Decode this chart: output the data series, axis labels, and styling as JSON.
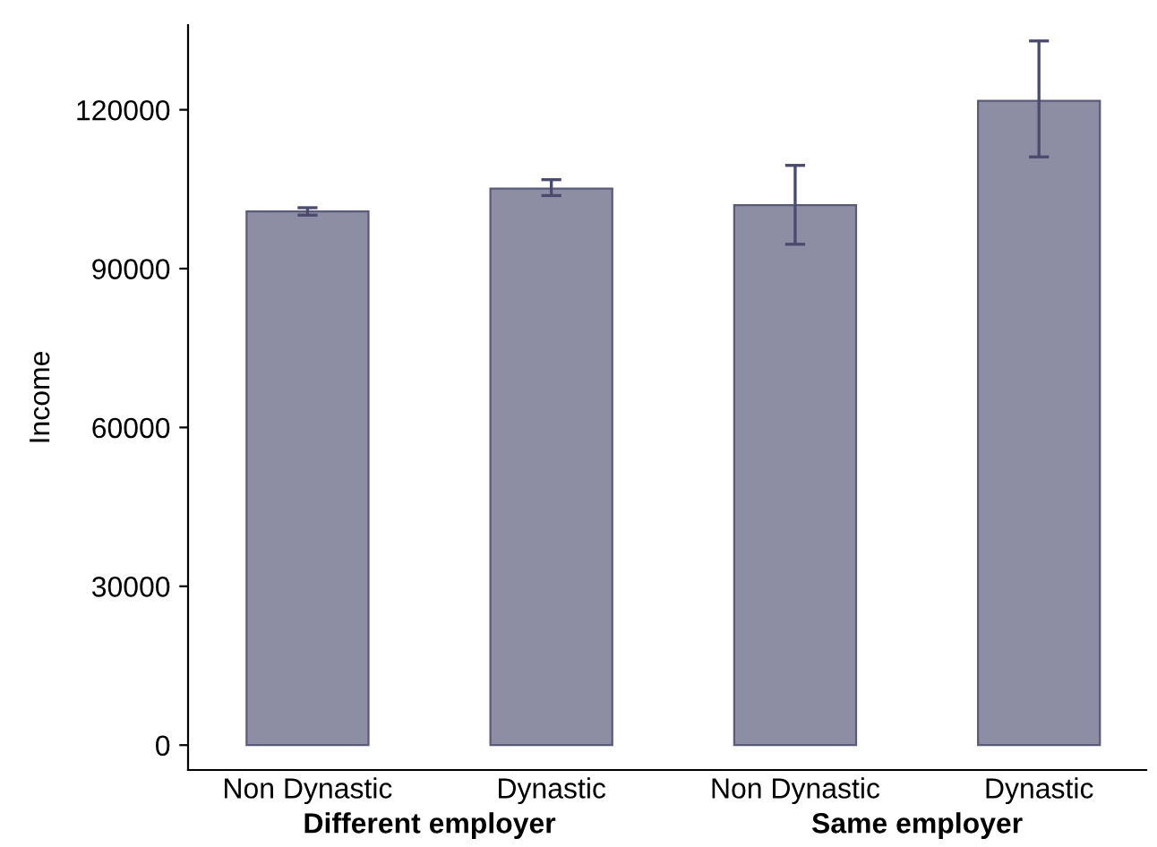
{
  "chart_data": {
    "type": "bar",
    "ylabel": "Income",
    "categories": [
      "Non Dynastic",
      "Dynastic",
      "Non Dynastic",
      "Dynastic"
    ],
    "values": [
      100800,
      105100,
      102000,
      121700
    ],
    "errors": [
      [
        100100,
        101500
      ],
      [
        103800,
        106800
      ],
      [
        94600,
        109500
      ],
      [
        111100,
        133000
      ]
    ],
    "color": "#8d8ea3",
    "ylim": [
      -4700,
      136000
    ],
    "yticks": [
      0,
      30000,
      60000,
      90000,
      120000
    ],
    "grid": false,
    "annotations": [
      "Different employer",
      "Same employer"
    ]
  }
}
